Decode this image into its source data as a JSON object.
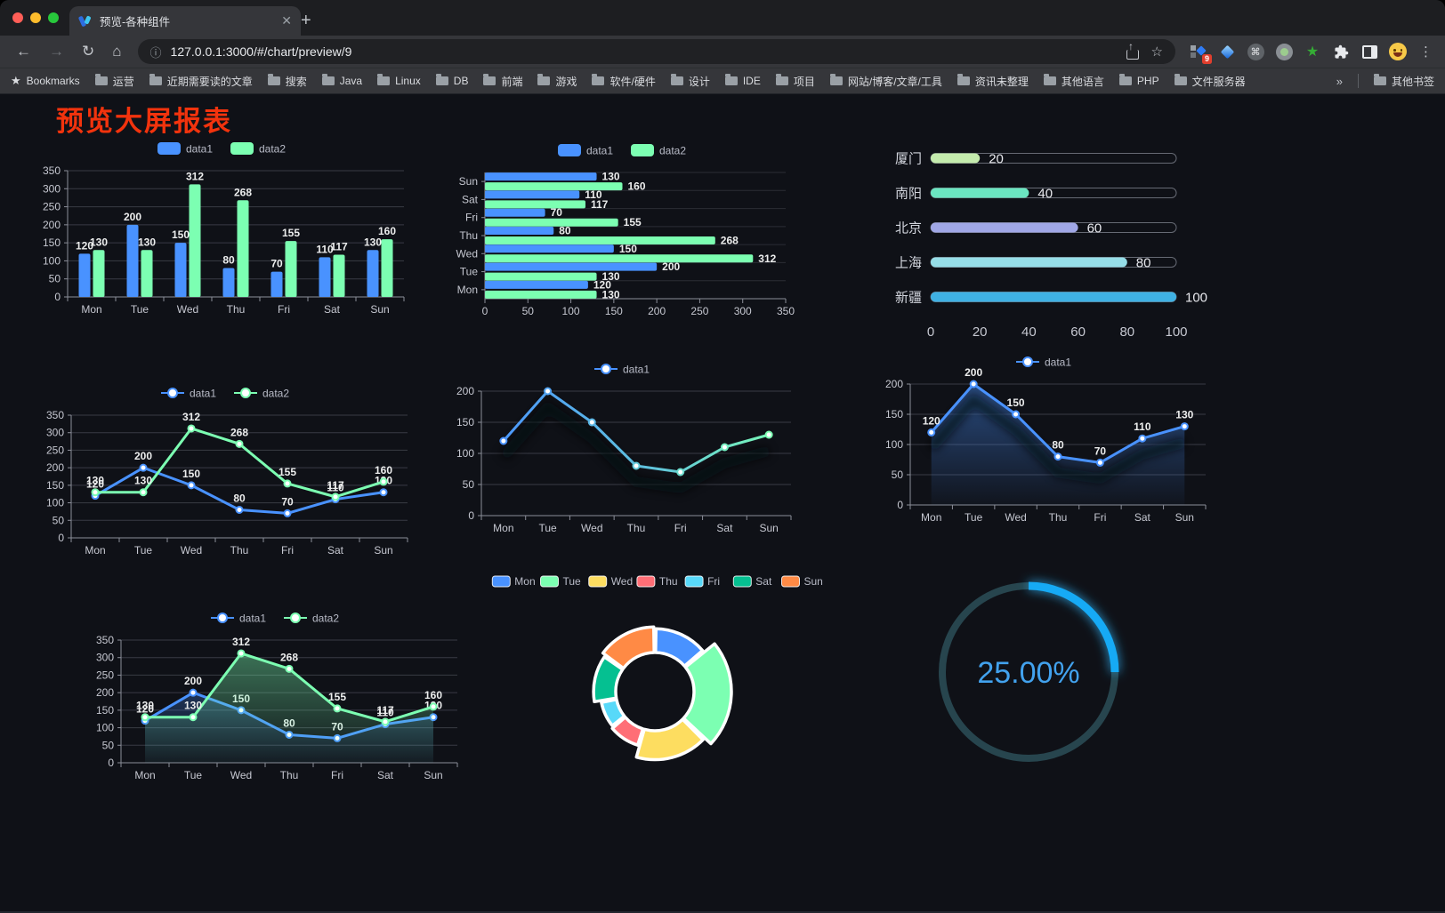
{
  "browser": {
    "tab_title": "预览-各种组件",
    "url": "127.0.0.1:3000/#/chart/preview/9",
    "bookmarks_label": "Bookmarks",
    "bookmarks": [
      "运营",
      "近期需要读的文章",
      "搜索",
      "Java",
      "Linux",
      "DB",
      "前端",
      "游戏",
      "软件/硬件",
      "设计",
      "IDE",
      "项目",
      "网站/博客/文章/工具",
      "资讯未整理",
      "其他语言",
      "PHP",
      "文件服务器"
    ],
    "overflow_chevron": "»",
    "other_bookmarks": "其他书签",
    "extension_badge": "9"
  },
  "page": {
    "heading": "预览大屏报表",
    "heading_color": "#f2330d",
    "background": "#0f1117"
  },
  "palette": {
    "blue": "#4992ff",
    "green": "#7cffb2",
    "yellow": "#fddd60",
    "red": "#ff6e76",
    "lightblue": "#58d9f9",
    "teal": "#05c091",
    "orange": "#ff8a45"
  },
  "chart_data": [
    {
      "id": "bar-grouped",
      "type": "bar",
      "categories": [
        "Mon",
        "Tue",
        "Wed",
        "Thu",
        "Fri",
        "Sat",
        "Sun"
      ],
      "series": [
        {
          "name": "data1",
          "color": "#4992ff",
          "values": [
            120,
            200,
            150,
            80,
            70,
            110,
            130
          ]
        },
        {
          "name": "data2",
          "color": "#7cffb2",
          "values": [
            130,
            130,
            312,
            268,
            155,
            117,
            160
          ]
        }
      ],
      "ylim": [
        0,
        350
      ],
      "ystep": 50,
      "legend": true,
      "labels": true
    },
    {
      "id": "bar-horizontal",
      "type": "hbar",
      "categories": [
        "Mon",
        "Tue",
        "Wed",
        "Thu",
        "Fri",
        "Sat",
        "Sun"
      ],
      "series": [
        {
          "name": "data1",
          "color": "#4992ff",
          "values": [
            120,
            200,
            150,
            80,
            70,
            110,
            130
          ]
        },
        {
          "name": "data2",
          "color": "#7cffb2",
          "values": [
            130,
            130,
            312,
            268,
            155,
            117,
            160
          ]
        }
      ],
      "xlim": [
        0,
        350
      ],
      "xstep": 50,
      "legend": true,
      "labels": true
    },
    {
      "id": "progress-capsules",
      "type": "capsule",
      "items": [
        {
          "label": "厦门",
          "value": 20,
          "color": "#c4ebad"
        },
        {
          "label": "南阳",
          "value": 40,
          "color": "#6be6c1"
        },
        {
          "label": "北京",
          "value": 60,
          "color": "#a0a7e6"
        },
        {
          "label": "上海",
          "value": 80,
          "color": "#96dee8"
        },
        {
          "label": "新疆",
          "value": 100,
          "color": "#3fb1e3"
        }
      ],
      "axis_ticks": [
        0,
        20,
        40,
        60,
        80,
        100
      ],
      "max": 100
    },
    {
      "id": "line-two",
      "type": "line",
      "categories": [
        "Mon",
        "Tue",
        "Wed",
        "Thu",
        "Fri",
        "Sat",
        "Sun"
      ],
      "series": [
        {
          "name": "data1",
          "color": "#4992ff",
          "values": [
            120,
            200,
            150,
            80,
            70,
            110,
            130
          ]
        },
        {
          "name": "data2",
          "color": "#7cffb2",
          "values": [
            130,
            130,
            312,
            268,
            155,
            117,
            160
          ]
        }
      ],
      "ylim": [
        0,
        350
      ],
      "ystep": 50,
      "legend": true,
      "labels": true,
      "markers": true
    },
    {
      "id": "line-gradient",
      "type": "line",
      "categories": [
        "Mon",
        "Tue",
        "Wed",
        "Thu",
        "Fri",
        "Sat",
        "Sun"
      ],
      "series": [
        {
          "name": "data1",
          "gradient": [
            "#4992ff",
            "#7cffb2"
          ],
          "values": [
            120,
            200,
            150,
            80,
            70,
            110,
            130
          ]
        }
      ],
      "ylim": [
        0,
        200
      ],
      "ystep": 50,
      "legend": true,
      "labels": false,
      "markers": true,
      "shadow": true
    },
    {
      "id": "area-single",
      "type": "line",
      "categories": [
        "Mon",
        "Tue",
        "Wed",
        "Thu",
        "Fri",
        "Sat",
        "Sun"
      ],
      "series": [
        {
          "name": "data1",
          "color": "#4992ff",
          "area": true,
          "values": [
            120,
            200,
            150,
            80,
            70,
            110,
            130
          ]
        }
      ],
      "ylim": [
        0,
        200
      ],
      "ystep": 50,
      "legend": true,
      "labels": true,
      "markers": true,
      "shadow": true
    },
    {
      "id": "area-two",
      "type": "line",
      "categories": [
        "Mon",
        "Tue",
        "Wed",
        "Thu",
        "Fri",
        "Sat",
        "Sun"
      ],
      "series": [
        {
          "name": "data1",
          "color": "#4992ff",
          "area": true,
          "values": [
            120,
            200,
            150,
            80,
            70,
            110,
            130
          ]
        },
        {
          "name": "data2",
          "color": "#7cffb2",
          "area": true,
          "values": [
            130,
            130,
            312,
            268,
            155,
            117,
            160
          ]
        }
      ],
      "ylim": [
        0,
        350
      ],
      "ystep": 50,
      "legend": true,
      "labels": true,
      "markers": true
    },
    {
      "id": "rose-donut",
      "type": "rose",
      "categories": [
        "Mon",
        "Tue",
        "Wed",
        "Thu",
        "Fri",
        "Sat",
        "Sun"
      ],
      "values": [
        120,
        200,
        150,
        80,
        70,
        110,
        130
      ],
      "colors": [
        "#4992ff",
        "#7cffb2",
        "#fddd60",
        "#ff6e76",
        "#58d9f9",
        "#05c091",
        "#ff8a45"
      ],
      "legend": true
    },
    {
      "id": "ring-progress",
      "type": "ring",
      "percent": 25,
      "label": "25.00%",
      "color": "#12aaf5",
      "track": "#27454e",
      "text_color": "#42a2ee"
    }
  ]
}
